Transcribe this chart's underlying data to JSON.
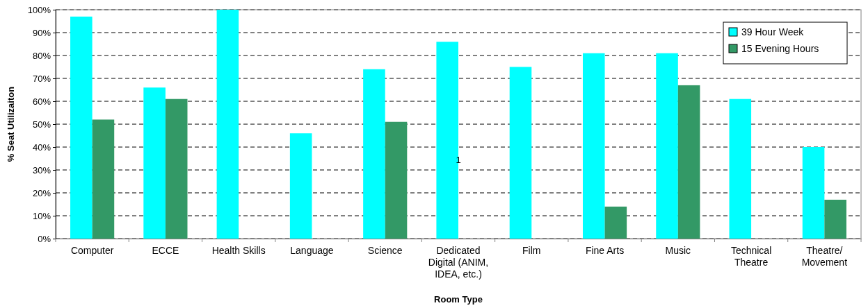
{
  "chart_data": {
    "type": "bar",
    "xlabel": "Room Type",
    "ylabel": "% Seat Utilizaiton",
    "categories": [
      "Computer",
      "ECCE",
      "Health Skills",
      "Language",
      "Science",
      "Dedicated Digital (ANIM, IDEA, etc.)",
      "Film",
      "Fine Arts",
      "Music",
      "Technical Theatre",
      "Theatre/ Movement"
    ],
    "series": [
      {
        "name": "39 Hour Week",
        "color": "#00ffff",
        "values": [
          97,
          66,
          100,
          46,
          74,
          86,
          75,
          81,
          81,
          61,
          40
        ]
      },
      {
        "name": "15 Evening Hours",
        "color": "#339966",
        "values": [
          52,
          61,
          null,
          null,
          51,
          null,
          null,
          14,
          67,
          null,
          17
        ]
      }
    ],
    "ylim": [
      0,
      100
    ],
    "yticks": [
      {
        "value": 0,
        "label": "0%"
      },
      {
        "value": 10,
        "label": "10%"
      },
      {
        "value": 20,
        "label": "20%"
      },
      {
        "value": 30,
        "label": "30%"
      },
      {
        "value": 40,
        "label": "40%"
      },
      {
        "value": 50,
        "label": "50%"
      },
      {
        "value": 60,
        "label": "60%"
      },
      {
        "value": 70,
        "label": "70%"
      },
      {
        "value": 80,
        "label": "80%"
      },
      {
        "value": 90,
        "label": "90%"
      },
      {
        "value": 100,
        "label": "100%"
      }
    ],
    "grid": "y",
    "line_style": "dashed",
    "legend": "top right",
    "annotations": [
      {
        "text": "1",
        "y": 33
      }
    ]
  }
}
